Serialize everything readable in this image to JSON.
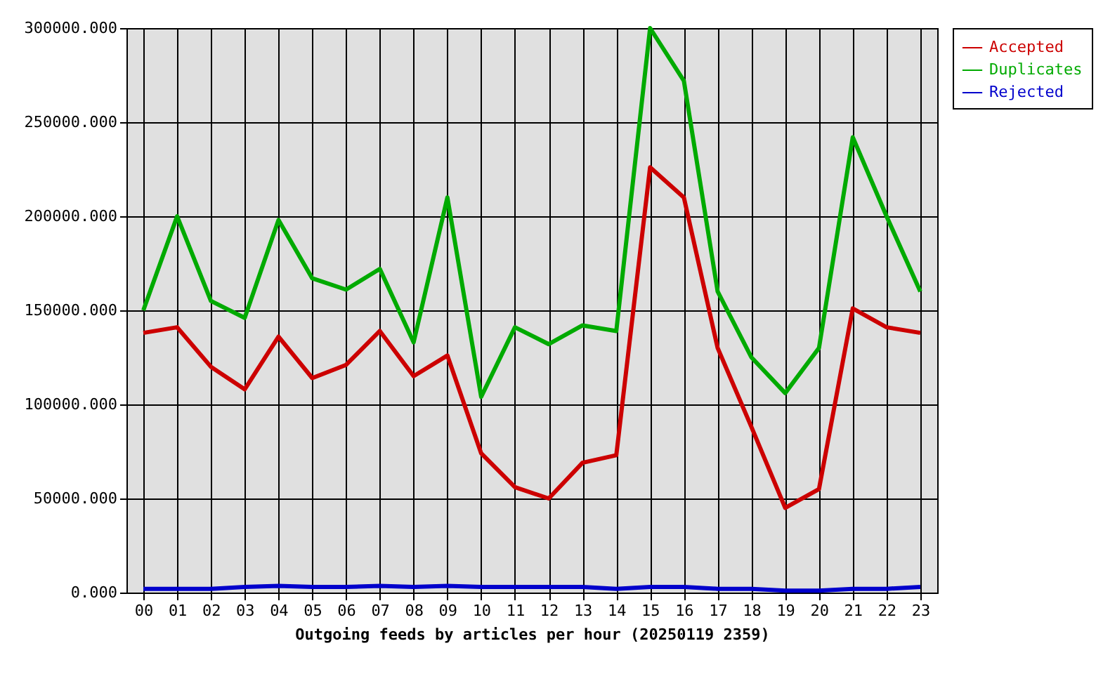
{
  "chart_data": {
    "type": "line",
    "xlabel": "Outgoing feeds by articles per hour (20250119 2359)",
    "categories": [
      "00",
      "01",
      "02",
      "03",
      "04",
      "05",
      "06",
      "07",
      "08",
      "09",
      "10",
      "11",
      "12",
      "13",
      "14",
      "15",
      "16",
      "17",
      "18",
      "19",
      "20",
      "21",
      "22",
      "23"
    ],
    "series": [
      {
        "name": "Accepted",
        "color": "#cc0000",
        "values": [
          138000,
          141000,
          120000,
          108000,
          136000,
          114000,
          121000,
          139000,
          115000,
          126000,
          74000,
          56000,
          50000,
          69000,
          73000,
          226000,
          210000,
          130000,
          88000,
          45000,
          55000,
          151000,
          141000,
          138000
        ]
      },
      {
        "name": "Duplicates",
        "color": "#00aa00",
        "values": [
          150000,
          200000,
          155000,
          146000,
          198000,
          167000,
          161000,
          172000,
          133000,
          210000,
          104000,
          141000,
          132000,
          142000,
          139000,
          300000,
          272000,
          160000,
          125000,
          106000,
          130000,
          242000,
          200000,
          160000
        ]
      },
      {
        "name": "Rejected",
        "color": "#0000cc",
        "values": [
          2000,
          2000,
          2000,
          3000,
          3500,
          3000,
          3000,
          3500,
          3000,
          3500,
          3000,
          3000,
          3000,
          3000,
          2000,
          3000,
          3000,
          2000,
          2000,
          1000,
          1000,
          2000,
          2000,
          3000
        ]
      }
    ],
    "ylim": [
      0,
      300000
    ],
    "yticks": [
      {
        "value": 0,
        "label": "0.000"
      },
      {
        "value": 50000,
        "label": "50000.000"
      },
      {
        "value": 100000,
        "label": "100000.000"
      },
      {
        "value": 150000,
        "label": "150000.000"
      },
      {
        "value": 200000,
        "label": "200000.000"
      },
      {
        "value": 250000,
        "label": "250000.000"
      },
      {
        "value": 300000,
        "label": "300000.000"
      }
    ],
    "grid": true,
    "legend": "top right",
    "marker": "none",
    "line_style": "solid"
  }
}
